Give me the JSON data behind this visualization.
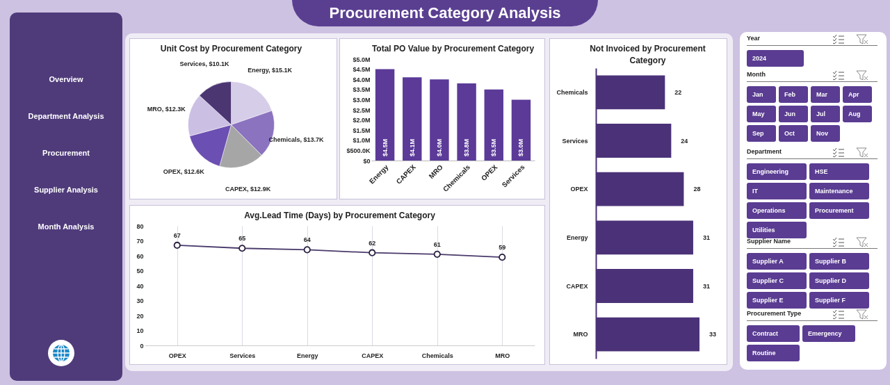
{
  "chart_data": [
    {
      "type": "other",
      "title": "Procurement Category Analysis"
    },
    {
      "type": "other",
      "annotations": [
        "Overview",
        "Department Analysis",
        "Procurement",
        "Supplier Analysis",
        "Month Analysis"
      ]
    },
    {
      "type": "pie",
      "title": "Unit Cost by Procurement Category",
      "categories": [
        "Energy",
        "Chemicals",
        "CAPEX",
        "OPEX",
        "MRO",
        "Services"
      ],
      "values": [
        15100,
        13700,
        12900,
        12600,
        12300,
        10100
      ],
      "value_labels": [
        "$15.1K",
        "$13.7K",
        "$12.9K",
        "$12.6K",
        "$12.3K",
        "$10.1K"
      ],
      "colors": [
        "#d6cde8",
        "#8b73c0",
        "#a6a6a6",
        "#6c4fb2",
        "#cbbfe4",
        "#4b3672"
      ]
    },
    {
      "type": "bar",
      "title": "Total PO Value by Procurement Category",
      "categories": [
        "Energy",
        "CAPEX",
        "MRO",
        "Chemicals",
        "OPEX",
        "Services"
      ],
      "values": [
        4500000,
        4100000,
        4000000,
        3800000,
        3500000,
        3000000
      ],
      "value_labels": [
        "$4.5M",
        "$4.1M",
        "$4.0M",
        "$3.8M",
        "$3.5M",
        "$3.0M"
      ],
      "color": "#5b3a98",
      "ylim": [
        0,
        5000000
      ],
      "yticks": [
        {
          "value": 0,
          "label": "$0"
        },
        {
          "value": 500000,
          "label": "$500.0K"
        },
        {
          "value": 1000000,
          "label": "$1.0M"
        },
        {
          "value": 1500000,
          "label": "$1.5M"
        },
        {
          "value": 2000000,
          "label": "$2.0M"
        },
        {
          "value": 2500000,
          "label": "$2.5M"
        },
        {
          "value": 3000000,
          "label": "$3.0M"
        },
        {
          "value": 3500000,
          "label": "$3.5M"
        },
        {
          "value": 4000000,
          "label": "$4.0M"
        },
        {
          "value": 4500000,
          "label": "$4.5M"
        },
        {
          "value": 5000000,
          "label": "$5.0M"
        }
      ],
      "grid": false
    },
    {
      "type": "bar",
      "orientation": "horizontal",
      "title": "Not Invoiced by Procurement Category",
      "categories": [
        "Chemicals",
        "Services",
        "OPEX",
        "Energy",
        "CAPEX",
        "MRO"
      ],
      "values": [
        22,
        24,
        28,
        31,
        31,
        33
      ],
      "color": "#4b3278",
      "data_labels": true,
      "tick_labels": "y"
    },
    {
      "type": "line",
      "title": "Avg.Lead Time (Days) by Procurement Category",
      "categories": [
        "OPEX",
        "Services",
        "Energy",
        "CAPEX",
        "Chemicals",
        "MRO"
      ],
      "values": [
        67,
        65,
        64,
        62,
        61,
        59
      ],
      "color": "#4a3a6b",
      "ylim": [
        0,
        80
      ],
      "yticks": [
        0,
        10,
        20,
        30,
        40,
        50,
        60,
        70,
        80
      ],
      "grid": "x",
      "marker": "circle",
      "data_labels": true
    },
    {
      "type": "other",
      "title": "Year",
      "annotations": [
        "2024"
      ]
    },
    {
      "type": "other",
      "title": "Month",
      "annotations": [
        "Jan",
        "Feb",
        "Mar",
        "Apr",
        "May",
        "Jun",
        "Jul",
        "Aug",
        "Sep",
        "Oct",
        "Nov"
      ]
    },
    {
      "type": "other",
      "title": "Department",
      "annotations": [
        "Engineering",
        "HSE",
        "IT",
        "Maintenance",
        "Operations",
        "Procurement",
        "Utilities"
      ]
    },
    {
      "type": "other",
      "title": "Supplier Name",
      "annotations": [
        "Supplier A",
        "Supplier B",
        "Supplier C",
        "Supplier D",
        "Supplier E",
        "Supplier F"
      ]
    },
    {
      "type": "other",
      "title": "Procurement Type",
      "annotations": [
        "Contract",
        "Emergency",
        "Routine"
      ]
    }
  ]
}
